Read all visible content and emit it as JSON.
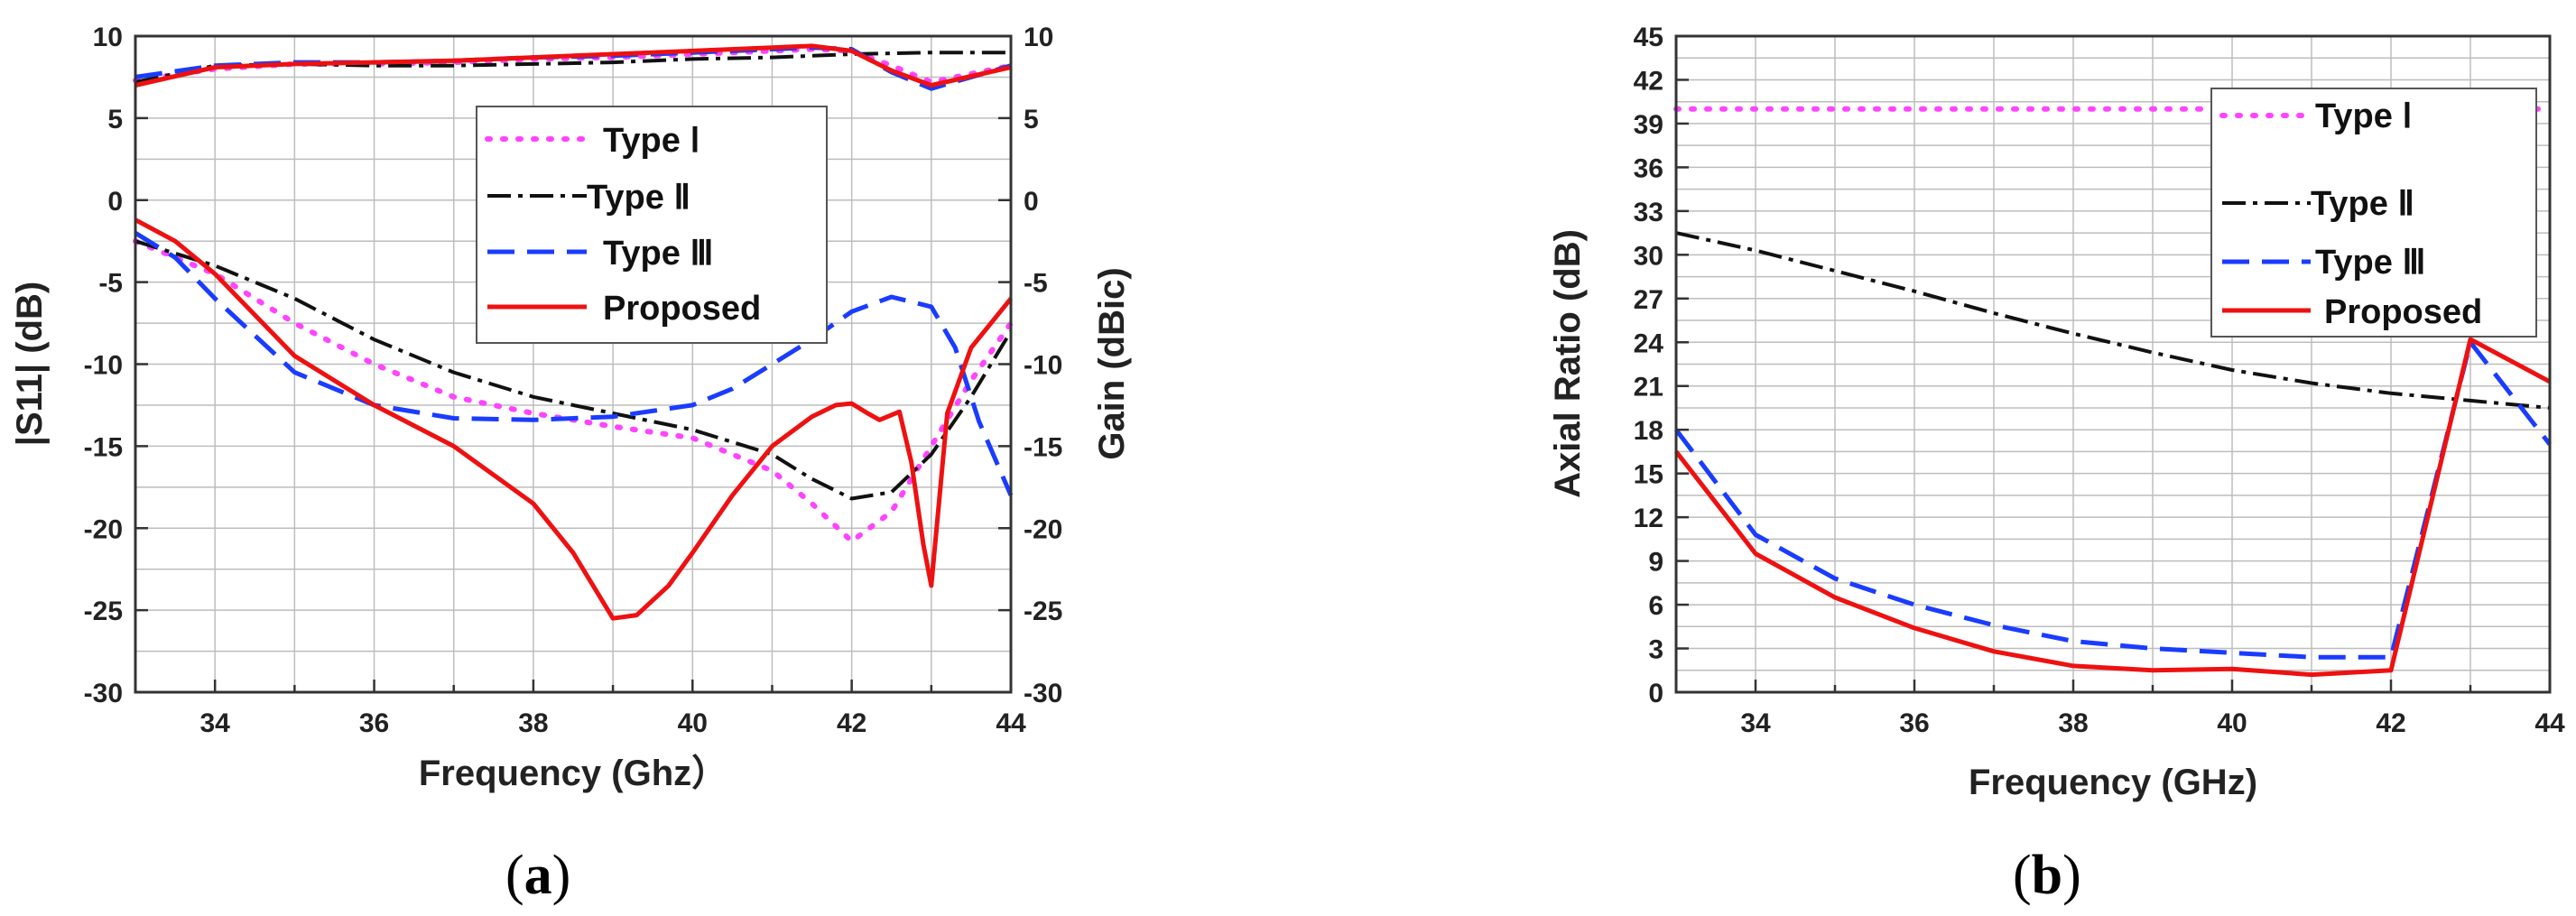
{
  "chart_data": [
    {
      "type": "line",
      "panel_label": "a",
      "xlabel": "Frequency (Ghz）",
      "ylabel": "|S11| (dB)",
      "y2label": "Gain (dBic)",
      "xlim": [
        33,
        44
      ],
      "ylim": [
        -30,
        10
      ],
      "y2lim": [
        -30,
        10
      ],
      "xticks": [
        34,
        36,
        38,
        40,
        42,
        44
      ],
      "yticks": [
        -30,
        -25,
        -20,
        -15,
        -10,
        -5,
        0,
        5,
        10
      ],
      "grid": true,
      "legend_position": "upper-center",
      "legend": [
        "Type Ⅰ",
        "Type Ⅱ",
        "Type Ⅲ",
        "Proposed"
      ],
      "series": [
        {
          "name": "Type Ⅰ",
          "quantity": "|S11|",
          "color": "#ff44ff",
          "style": "dotted",
          "x": [
            33,
            34,
            35,
            36,
            37,
            38,
            39,
            40,
            41,
            41.5,
            42,
            42.5,
            43,
            43.5,
            44
          ],
          "y": [
            -2.5,
            -4.5,
            -7.5,
            -10,
            -12,
            -13,
            -13.8,
            -14.5,
            -16.5,
            -18.5,
            -20.8,
            -19,
            -15,
            -11,
            -7.5
          ]
        },
        {
          "name": "Type Ⅱ",
          "quantity": "|S11|",
          "color": "#111111",
          "style": "dashdot",
          "x": [
            33,
            34,
            35,
            36,
            37,
            38,
            39,
            40,
            41,
            41.5,
            42,
            42.5,
            43,
            43.5,
            44
          ],
          "y": [
            -2.5,
            -4,
            -6,
            -8.5,
            -10.5,
            -12,
            -13,
            -14,
            -15.5,
            -17,
            -18.2,
            -17.8,
            -15.5,
            -12,
            -8
          ]
        },
        {
          "name": "Type Ⅲ",
          "quantity": "|S11|",
          "color": "#1a3cff",
          "style": "dashed",
          "x": [
            33,
            33.5,
            34,
            35,
            36,
            37,
            38,
            39,
            40,
            40.5,
            41,
            41.5,
            42,
            42.5,
            43,
            43.3,
            43.6,
            44
          ],
          "y": [
            -2,
            -3.5,
            -6,
            -10.5,
            -12.5,
            -13.3,
            -13.4,
            -13.2,
            -12.5,
            -11.5,
            -10,
            -8.5,
            -6.8,
            -5.9,
            -6.5,
            -9,
            -13.5,
            -18
          ]
        },
        {
          "name": "Proposed",
          "quantity": "|S11|",
          "color": "#ee1111",
          "style": "solid",
          "x": [
            33,
            33.5,
            34,
            35,
            36,
            37,
            38,
            38.5,
            39,
            39.3,
            39.7,
            40,
            40.5,
            41,
            41.5,
            41.8,
            42,
            42.2,
            42.35,
            42.6,
            42.75,
            42.9,
            43,
            43.2,
            43.5,
            44
          ],
          "y": [
            -1.2,
            -2.5,
            -4.5,
            -9.5,
            -12.5,
            -15,
            -18.5,
            -21.5,
            -25.5,
            -25.3,
            -23.5,
            -21.5,
            -18,
            -15,
            -13.2,
            -12.5,
            -12.4,
            -13,
            -13.4,
            -12.9,
            -16,
            -21,
            -23.5,
            -13,
            -9,
            -6
          ]
        },
        {
          "name": "Type Ⅰ gain",
          "quantity": "Gain",
          "color": "#ff44ff",
          "style": "dotted",
          "x": [
            33,
            34,
            35,
            36,
            37,
            38,
            39,
            40,
            41,
            41.5,
            42,
            42.5,
            43,
            44
          ],
          "y": [
            7.3,
            8.0,
            8.3,
            8.3,
            8.4,
            8.6,
            8.7,
            8.9,
            9.1,
            9.2,
            9.1,
            8.2,
            7.2,
            8.2
          ]
        },
        {
          "name": "Type Ⅱ gain",
          "quantity": "Gain",
          "color": "#111111",
          "style": "dashdot",
          "x": [
            33,
            34,
            35,
            36,
            37,
            38,
            39,
            40,
            41,
            42,
            43,
            44
          ],
          "y": [
            7.2,
            8.2,
            8.3,
            8.2,
            8.2,
            8.3,
            8.4,
            8.6,
            8.7,
            8.9,
            9.0,
            9.0
          ]
        },
        {
          "name": "Type Ⅲ gain",
          "quantity": "Gain",
          "color": "#1a3cff",
          "style": "dashed",
          "x": [
            33,
            34,
            35,
            36,
            37,
            38,
            39,
            40,
            41,
            41.5,
            42,
            42.5,
            43,
            44
          ],
          "y": [
            7.5,
            8.2,
            8.4,
            8.4,
            8.5,
            8.7,
            8.8,
            9.0,
            9.2,
            9.3,
            9.2,
            7.8,
            6.8,
            8.2
          ]
        },
        {
          "name": "Proposed gain",
          "quantity": "Gain",
          "color": "#ee1111",
          "style": "solid",
          "x": [
            33,
            34,
            35,
            36,
            37,
            38,
            39,
            40,
            41,
            41.5,
            42,
            42.5,
            43,
            44
          ],
          "y": [
            7.0,
            8.1,
            8.3,
            8.4,
            8.5,
            8.7,
            8.9,
            9.1,
            9.3,
            9.4,
            9.1,
            7.9,
            7.0,
            8.1
          ]
        }
      ]
    },
    {
      "type": "line",
      "panel_label": "b",
      "xlabel": "Frequency (GHz)",
      "ylabel": "Axial Ratio (dB)",
      "xlim": [
        33,
        44
      ],
      "ylim": [
        0,
        45
      ],
      "xticks": [
        34,
        36,
        38,
        40,
        42,
        44
      ],
      "yticks": [
        0,
        3,
        6,
        9,
        12,
        15,
        18,
        21,
        24,
        27,
        30,
        33,
        36,
        39,
        42,
        45
      ],
      "grid": true,
      "legend_position": "upper-right",
      "legend": [
        "Type Ⅰ",
        "Type Ⅱ",
        "Type Ⅲ",
        "Proposed"
      ],
      "series": [
        {
          "name": "Type Ⅰ",
          "color": "#ff44ff",
          "style": "dotted",
          "x": [
            33,
            34,
            35,
            36,
            37,
            38,
            39,
            40,
            41,
            42,
            43,
            44
          ],
          "y": [
            40,
            40,
            40,
            40,
            40,
            40,
            40,
            40,
            40,
            40,
            40,
            40
          ]
        },
        {
          "name": "Type Ⅱ",
          "color": "#111111",
          "style": "dashdot",
          "x": [
            33,
            34,
            35,
            36,
            37,
            38,
            39,
            40,
            41,
            42,
            43,
            44
          ],
          "y": [
            31.5,
            30.3,
            28.9,
            27.5,
            26,
            24.6,
            23.3,
            22.1,
            21.2,
            20.5,
            20.0,
            19.5
          ]
        },
        {
          "name": "Type Ⅲ",
          "color": "#1a3cff",
          "style": "dashed",
          "x": [
            33,
            34,
            35,
            36,
            37,
            38,
            39,
            40,
            41,
            42,
            43,
            44
          ],
          "y": [
            18,
            10.8,
            7.8,
            6,
            4.6,
            3.5,
            3.0,
            2.7,
            2.4,
            2.4,
            24,
            17
          ]
        },
        {
          "name": "Proposed",
          "color": "#ee1111",
          "style": "solid",
          "x": [
            33,
            34,
            35,
            36,
            37,
            38,
            39,
            40,
            41,
            42,
            43,
            44
          ],
          "y": [
            16.5,
            9.5,
            6.5,
            4.4,
            2.8,
            1.8,
            1.5,
            1.6,
            1.2,
            1.5,
            24.2,
            21.3
          ]
        }
      ]
    }
  ]
}
